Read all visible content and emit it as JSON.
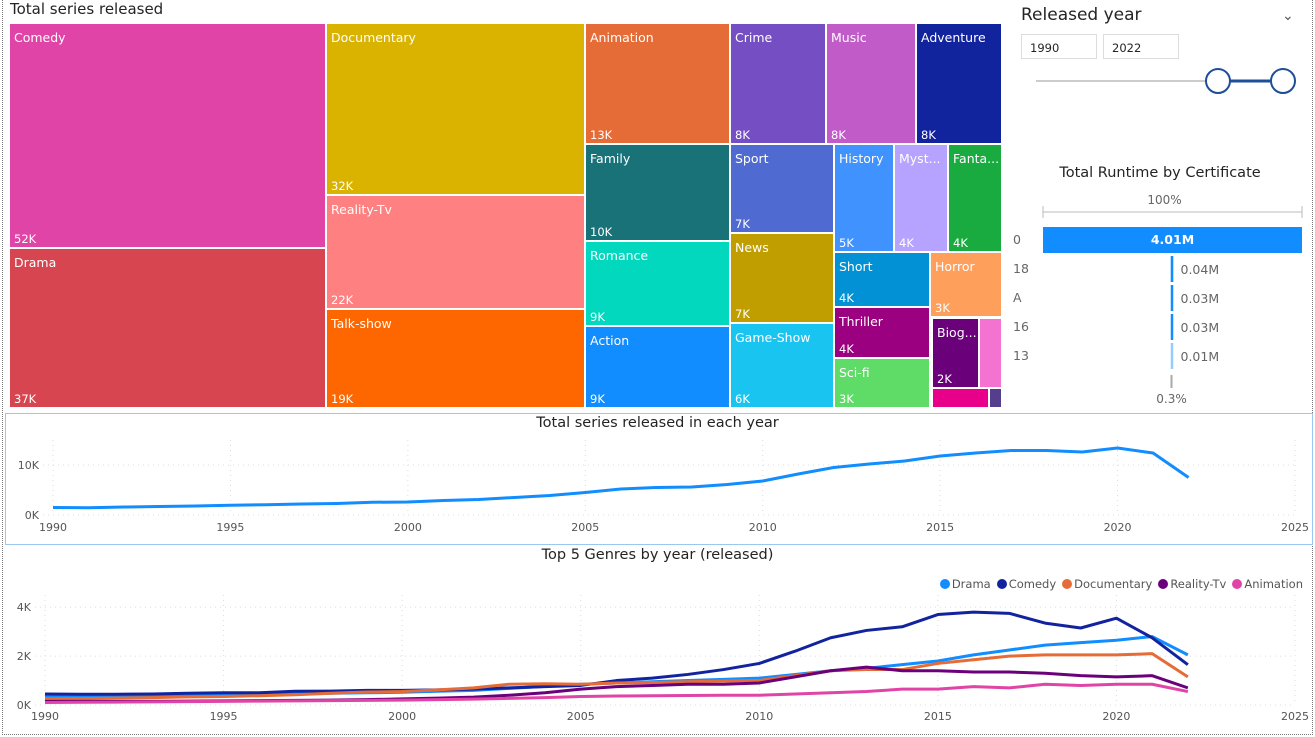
{
  "treemap": {
    "title": "Total series released",
    "cells": [
      {
        "label": "Comedy",
        "value": "52K",
        "color": "#E044A7"
      },
      {
        "label": "Drama",
        "value": "37K",
        "color": "#D64550"
      },
      {
        "label": "Documentary",
        "value": "32K",
        "color": "#D9B300"
      },
      {
        "label": "Reality-Tv",
        "value": "22K",
        "color": "#FF8080"
      },
      {
        "label": "Talk-show",
        "value": "19K",
        "color": "#FE6600"
      },
      {
        "label": "Animation",
        "value": "13K",
        "color": "#E66C37"
      },
      {
        "label": "Crime",
        "value": "8K",
        "color": "#744EC2"
      },
      {
        "label": "Music",
        "value": "8K",
        "color": "#C05BC8"
      },
      {
        "label": "Adventure",
        "value": "8K",
        "color": "#12239E"
      },
      {
        "label": "Family",
        "value": "10K",
        "color": "#197278"
      },
      {
        "label": "Romance",
        "value": "9K",
        "color": "#01D8BE"
      },
      {
        "label": "Action",
        "value": "9K",
        "color": "#118DFF"
      },
      {
        "label": "Sport",
        "value": "7K",
        "color": "#4F6BD2"
      },
      {
        "label": "News",
        "value": "7K",
        "color": "#C19E00"
      },
      {
        "label": "Game-Show",
        "value": "6K",
        "color": "#1AC4F0"
      },
      {
        "label": "History",
        "value": "5K",
        "color": "#4092FF"
      },
      {
        "label": "Myst...",
        "value": "4K",
        "color": "#B6A2FF"
      },
      {
        "label": "Fanta...",
        "value": "4K",
        "color": "#1AAB40"
      },
      {
        "label": "Short",
        "value": "4K",
        "color": "#0291D4"
      },
      {
        "label": "Horror",
        "value": "3K",
        "color": "#FF9F5C"
      },
      {
        "label": "Thriller",
        "value": "4K",
        "color": "#9B0081"
      },
      {
        "label": "Sci-fi",
        "value": "3K",
        "color": "#5FDB67"
      },
      {
        "label": "Biog...",
        "value": "2K",
        "color": "#6B007B"
      },
      {
        "label": "",
        "value": "",
        "color": "#F472D0"
      },
      {
        "label": "",
        "value": "",
        "color": "#E8008B"
      },
      {
        "label": "",
        "value": "",
        "color": "#553F8D"
      }
    ]
  },
  "slicer": {
    "title": "Released year",
    "from": "1990",
    "to": "2022",
    "range": [
      1990,
      2022
    ]
  },
  "chart_data": [
    {
      "type": "bar",
      "subtype": "funnel",
      "title": "Total Runtime by Certificate",
      "top_label": "100%",
      "bottom_label": "0.3%",
      "categories": [
        "0",
        "18",
        "A",
        "16",
        "13"
      ],
      "values": [
        4.01,
        0.04,
        0.03,
        0.03,
        0.01
      ],
      "labels": [
        "4.01M",
        "0.04M",
        "0.03M",
        "0.03M",
        "0.01M"
      ],
      "color": "#118DFF"
    },
    {
      "type": "line",
      "title": "Total series released in each year",
      "xlim": [
        1990,
        2025
      ],
      "ylim": [
        0,
        15000
      ],
      "xticks": [
        "1990",
        "1995",
        "2000",
        "2005",
        "2010",
        "2015",
        "2020",
        "2025"
      ],
      "yticks": [
        "0K",
        "10K"
      ],
      "yticks_values": [
        0,
        10000
      ],
      "grid": true,
      "color": "#118DFF",
      "x": [
        1990,
        1991,
        1992,
        1993,
        1994,
        1995,
        1996,
        1997,
        1998,
        1999,
        2000,
        2001,
        2002,
        2003,
        2004,
        2005,
        2006,
        2007,
        2008,
        2009,
        2010,
        2011,
        2012,
        2013,
        2014,
        2015,
        2016,
        2017,
        2018,
        2019,
        2020,
        2021,
        2022
      ],
      "values": [
        1500,
        1450,
        1600,
        1700,
        1800,
        1950,
        2050,
        2200,
        2300,
        2550,
        2600,
        2900,
        3100,
        3500,
        3900,
        4500,
        5200,
        5500,
        5600,
        6100,
        6800,
        8200,
        9500,
        10200,
        10800,
        11800,
        12400,
        12900,
        12900,
        12600,
        13400,
        12400,
        7500
      ]
    },
    {
      "type": "line",
      "title": "Top 5 Genres by year (released)",
      "xlim": [
        1990,
        2025
      ],
      "ylim": [
        0,
        4500
      ],
      "xticks": [
        "1990",
        "1995",
        "2000",
        "2005",
        "2010",
        "2015",
        "2020",
        "2025"
      ],
      "yticks": [
        "0K",
        "2K",
        "4K"
      ],
      "yticks_values": [
        0,
        2000,
        4000
      ],
      "grid": true,
      "legend": "top-right",
      "x": [
        1990,
        1991,
        1992,
        1993,
        1994,
        1995,
        1996,
        1997,
        1998,
        1999,
        2000,
        2001,
        2002,
        2003,
        2004,
        2005,
        2006,
        2007,
        2008,
        2009,
        2010,
        2011,
        2012,
        2013,
        2014,
        2015,
        2016,
        2017,
        2018,
        2019,
        2020,
        2021,
        2022
      ],
      "series": [
        {
          "name": "Drama",
          "color": "#118DFF",
          "values": [
            350,
            350,
            360,
            370,
            380,
            400,
            420,
            450,
            480,
            500,
            520,
            560,
            600,
            680,
            760,
            850,
            900,
            950,
            1000,
            1050,
            1100,
            1250,
            1400,
            1500,
            1650,
            1800,
            2050,
            2250,
            2450,
            2550,
            2650,
            2800,
            2050
          ]
        },
        {
          "name": "Comedy",
          "color": "#12239E",
          "values": [
            450,
            440,
            440,
            450,
            480,
            500,
            500,
            560,
            570,
            600,
            600,
            620,
            650,
            700,
            750,
            800,
            1000,
            1100,
            1250,
            1450,
            1700,
            2200,
            2750,
            3050,
            3200,
            3700,
            3800,
            3750,
            3350,
            3150,
            3550,
            2750,
            1650
          ]
        },
        {
          "name": "Documentary",
          "color": "#E66C37",
          "values": [
            250,
            260,
            280,
            300,
            330,
            350,
            380,
            420,
            480,
            530,
            550,
            620,
            700,
            850,
            870,
            850,
            900,
            920,
            950,
            980,
            1000,
            1200,
            1400,
            1450,
            1450,
            1700,
            1850,
            2000,
            2050,
            2050,
            2050,
            2100,
            1150
          ]
        },
        {
          "name": "Reality-Tv",
          "color": "#6B007B",
          "values": [
            150,
            150,
            150,
            150,
            160,
            170,
            180,
            190,
            200,
            220,
            250,
            280,
            320,
            400,
            500,
            650,
            750,
            800,
            850,
            850,
            900,
            1150,
            1400,
            1550,
            1400,
            1400,
            1350,
            1350,
            1300,
            1200,
            1150,
            1200,
            700
          ]
        },
        {
          "name": "Animation",
          "color": "#E044A7",
          "values": [
            100,
            110,
            120,
            130,
            140,
            150,
            160,
            170,
            180,
            190,
            200,
            220,
            240,
            270,
            300,
            350,
            370,
            380,
            390,
            400,
            400,
            450,
            500,
            550,
            650,
            650,
            750,
            700,
            850,
            800,
            850,
            850,
            550
          ]
        }
      ]
    }
  ]
}
